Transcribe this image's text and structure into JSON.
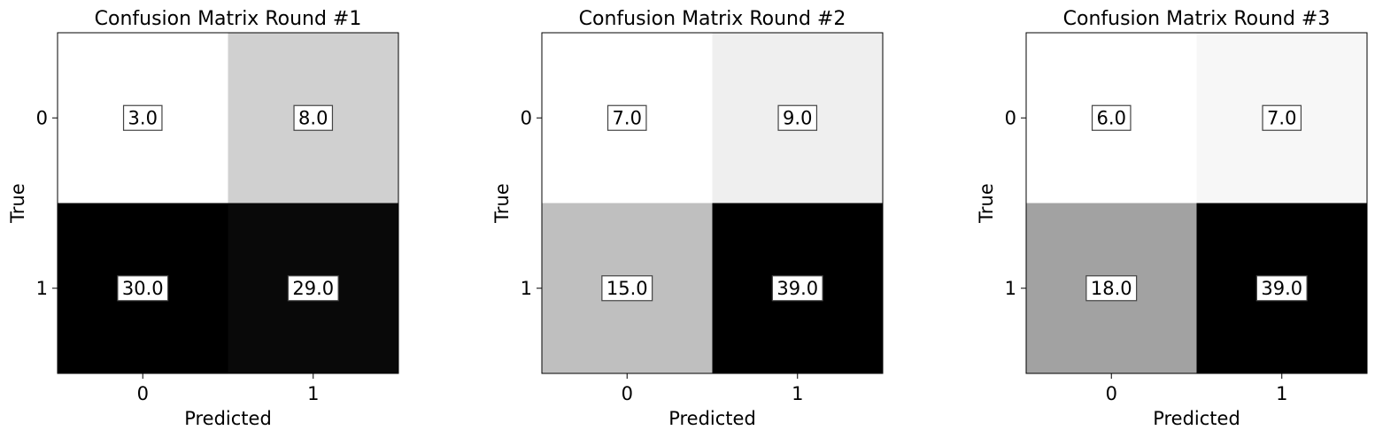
{
  "chart_data": [
    {
      "type": "heatmap",
      "title": "Confusion Matrix Round #1",
      "xlabel": "Predicted",
      "ylabel": "True",
      "x_ticks": [
        "0",
        "1"
      ],
      "y_ticks": [
        "0",
        "1"
      ],
      "values": [
        [
          3.0,
          8.0
        ],
        [
          30.0,
          29.0
        ]
      ],
      "value_labels": [
        [
          "3.0",
          "8.0"
        ],
        [
          "30.0",
          "29.0"
        ]
      ],
      "colormap": "gray_r"
    },
    {
      "type": "heatmap",
      "title": "Confusion Matrix Round #2",
      "xlabel": "Predicted",
      "ylabel": "True",
      "x_ticks": [
        "0",
        "1"
      ],
      "y_ticks": [
        "0",
        "1"
      ],
      "values": [
        [
          7.0,
          9.0
        ],
        [
          15.0,
          39.0
        ]
      ],
      "value_labels": [
        [
          "7.0",
          "9.0"
        ],
        [
          "15.0",
          "39.0"
        ]
      ],
      "colormap": "gray_r"
    },
    {
      "type": "heatmap",
      "title": "Confusion Matrix Round #3",
      "xlabel": "Predicted",
      "ylabel": "True",
      "x_ticks": [
        "0",
        "1"
      ],
      "y_ticks": [
        "0",
        "1"
      ],
      "values": [
        [
          6.0,
          7.0
        ],
        [
          18.0,
          39.0
        ]
      ],
      "value_labels": [
        [
          "6.0",
          "7.0"
        ],
        [
          "18.0",
          "39.0"
        ]
      ],
      "colormap": "gray_r"
    }
  ]
}
